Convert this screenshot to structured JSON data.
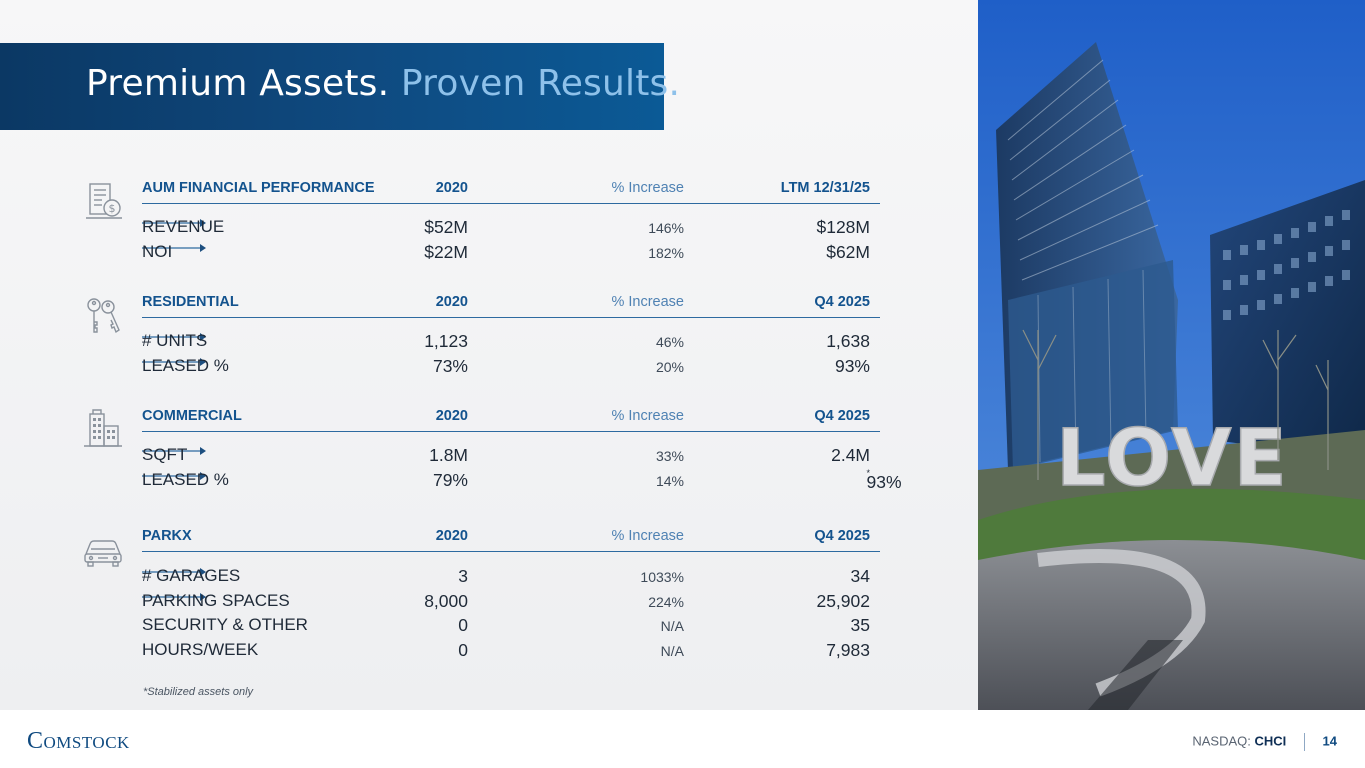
{
  "title": {
    "main": "Premium Assets.",
    "accent": "Proven Results."
  },
  "sections": [
    {
      "header": {
        "label": "AUM FINANCIAL PERFORMANCE",
        "year": "2020",
        "increase": "% Increase",
        "current": "LTM 12/31/25"
      },
      "icon": "dollar-document-icon",
      "rows": [
        {
          "label": "REVENUE",
          "year": "$52M",
          "increase": "146%",
          "arrow": true,
          "current": "$128M"
        },
        {
          "label": "NOI",
          "year": "$22M",
          "increase": "182%",
          "arrow": true,
          "current": "$62M"
        }
      ]
    },
    {
      "header": {
        "label": "RESIDENTIAL",
        "year": "2020",
        "increase": "% Increase",
        "current": "Q4 2025"
      },
      "icon": "keys-icon",
      "rows": [
        {
          "label": "# UNITS",
          "year": "1,123",
          "increase": "46%",
          "arrow": true,
          "current": "1,638"
        },
        {
          "label": "LEASED %",
          "year": "73%",
          "increase": "20%",
          "arrow": true,
          "current": "93%"
        }
      ]
    },
    {
      "header": {
        "label": "COMMERCIAL",
        "year": "2020",
        "increase": "% Increase",
        "current": "Q4 2025"
      },
      "icon": "office-building-icon",
      "rows": [
        {
          "label": "SQFT",
          "year": "1.8M",
          "increase": "33%",
          "arrow": true,
          "current": "2.4M"
        },
        {
          "label": "LEASED %",
          "year": "79%",
          "increase": "14%",
          "arrow": true,
          "current": "93%",
          "current_note": "*"
        }
      ]
    },
    {
      "header": {
        "label": "PARKX",
        "year": "2020",
        "increase": "% Increase",
        "current": "Q4 2025"
      },
      "icon": "car-icon",
      "rows": [
        {
          "label": "# GARAGES",
          "year": "3",
          "increase": "1033%",
          "arrow": true,
          "current": "34"
        },
        {
          "label": "PARKING SPACES",
          "year": "8,000",
          "increase": "224%",
          "arrow": true,
          "current": "25,902"
        },
        {
          "label": "SECURITY & OTHER",
          "year": "0",
          "increase": "N/A",
          "arrow": false,
          "current": "35"
        },
        {
          "label": "HOURS/WEEK",
          "year": "0",
          "increase": "N/A",
          "arrow": false,
          "current": "7,983"
        }
      ]
    }
  ],
  "footnote": "*Stabilized assets only",
  "photo": {
    "sign_text": "LOVE"
  },
  "footer": {
    "logo": "Comstock",
    "exchange": "NASDAQ:",
    "ticker": "CHCI",
    "page": "14"
  },
  "colors": {
    "brand_navy": "#0f4a80",
    "accent_light_blue": "#8ec1ea",
    "sky": "#2f6fd0"
  }
}
